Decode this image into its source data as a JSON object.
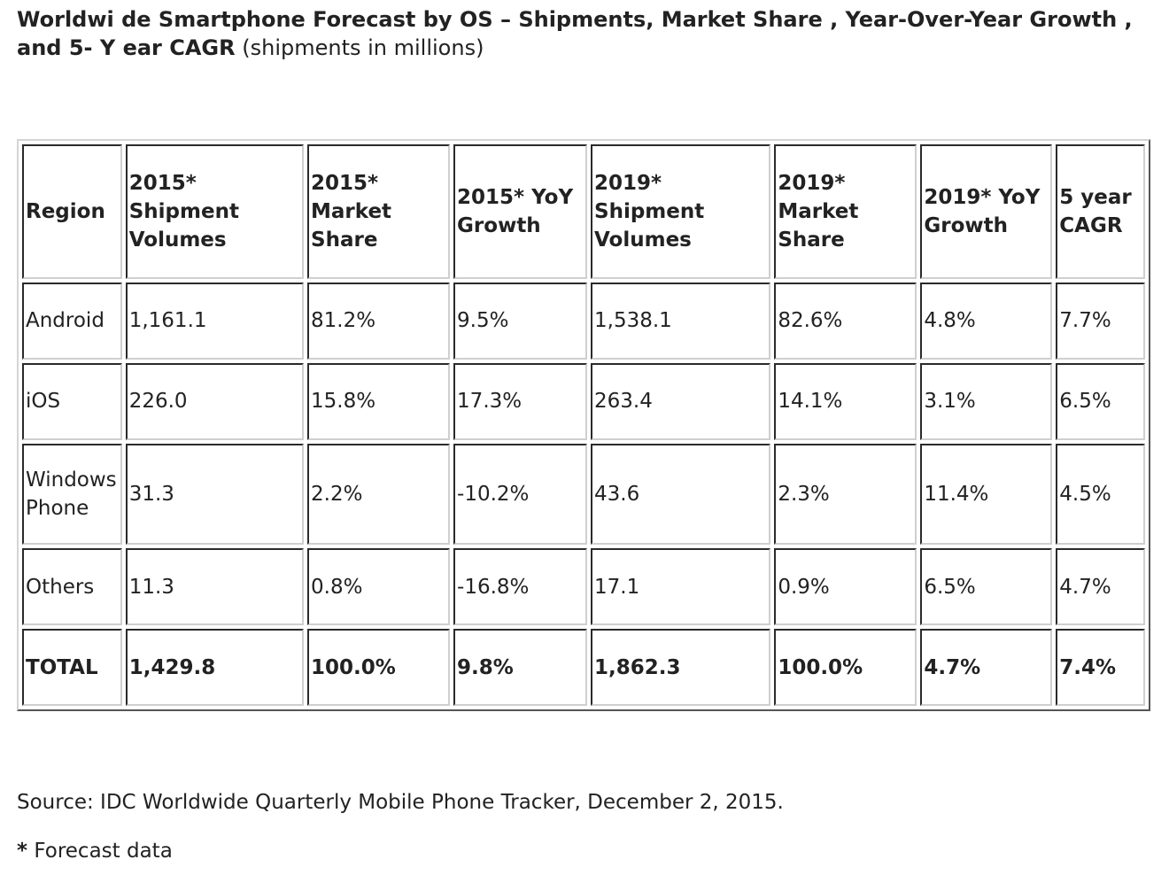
{
  "title": {
    "bold_text": "Worldwi de Smartphone Forecast by OS – Shipments, Market Share , Year-Over-Year Growth , and 5- Y ear CAGR",
    "normal_text": " (shipments in millions)"
  },
  "table": {
    "headers": [
      "Region",
      "2015* Shipment Volumes",
      "2015* Market Share",
      "2015* YoY Growth",
      "2019* Shipment Volumes",
      "2019* Market Share",
      "2019* YoY Growth",
      "5 year CAGR"
    ],
    "rows": [
      [
        "Android",
        "1,161.1",
        "81.2%",
        "9.5%",
        "1,538.1",
        "82.6%",
        "4.8%",
        "7.7%"
      ],
      [
        "iOS",
        "226.0",
        "15.8%",
        "17.3%",
        "263.4",
        "14.1%",
        "3.1%",
        "6.5%"
      ],
      [
        "Windows Phone",
        "31.3",
        "2.2%",
        "-10.2%",
        "43.6",
        "2.3%",
        "11.4%",
        "4.5%"
      ],
      [
        "Others",
        "11.3",
        "0.8%",
        "-16.8%",
        "17.1",
        "0.9%",
        "6.5%",
        "4.7%"
      ]
    ],
    "total": [
      "TOTAL",
      "1,429.8",
      "100.0%",
      "9.8%",
      "1,862.3",
      "100.0%",
      "4.7%",
      "7.4%"
    ]
  },
  "source": "Source: IDC Worldwide Quarterly Mobile Phone Tracker, December 2, 2015.",
  "footnote": {
    "asterisk": "*",
    "text": " Forecast data"
  }
}
